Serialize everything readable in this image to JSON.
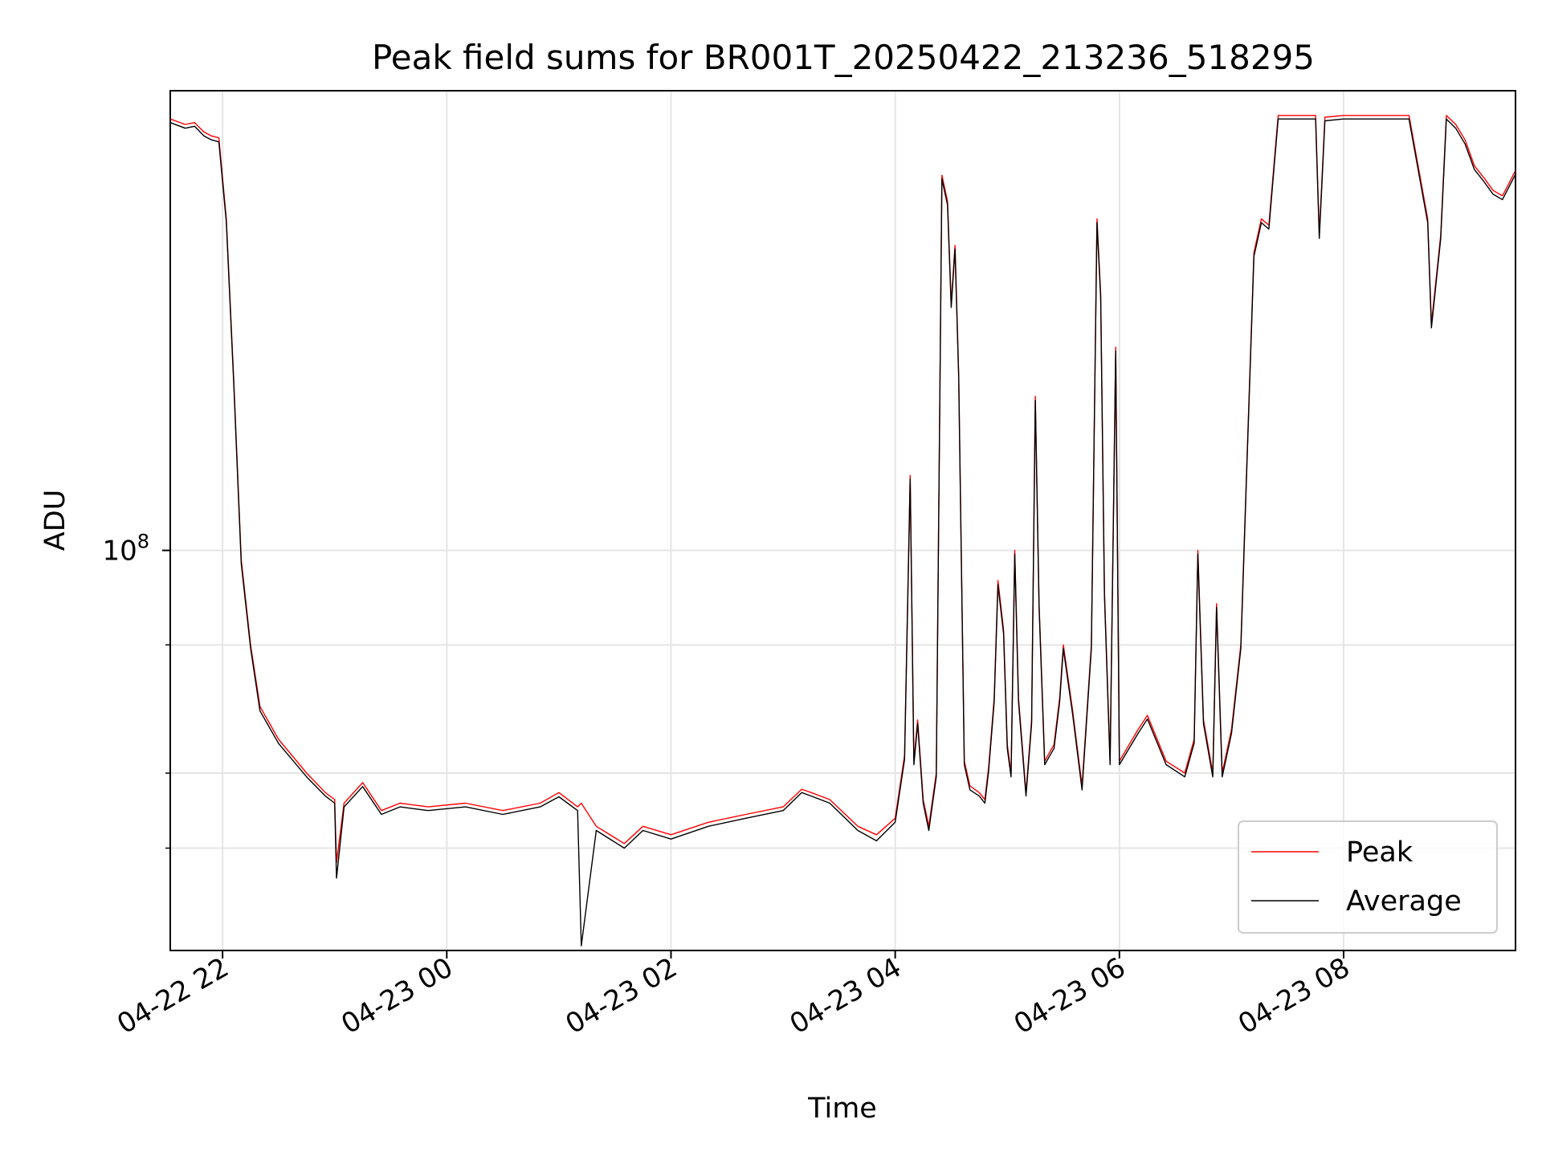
{
  "chart_data": {
    "type": "line",
    "title": "Peak field sums for BR001T_20250422_213236_518295",
    "xlabel": "Time",
    "ylabel": "ADU",
    "y_scale": "log",
    "grid": true,
    "legend_position": "bottom-right",
    "xlim": [
      "2025-04-22 21:32",
      "2025-04-23 09:32"
    ],
    "ylim": [
      11500000,
      1200000000
    ],
    "x_ticks": [
      {
        "value": "2025-04-22 22:00",
        "label": "04-22 22"
      },
      {
        "value": "2025-04-23 00:00",
        "label": "04-23 00"
      },
      {
        "value": "2025-04-23 02:00",
        "label": "04-23 02"
      },
      {
        "value": "2025-04-23 04:00",
        "label": "04-23 04"
      },
      {
        "value": "2025-04-23 06:00",
        "label": "04-23 06"
      },
      {
        "value": "2025-04-23 08:00",
        "label": "04-23 08"
      }
    ],
    "y_ticks": [
      {
        "value": 100000000,
        "base": "10",
        "exp": "8"
      }
    ],
    "y_minor_ticks": [
      20000000,
      30000000,
      60000000
    ],
    "series": [
      {
        "name": "Peak",
        "color": "#ff0000",
        "x": [
          "2025-04-22 21:32",
          "2025-04-22 21:40",
          "2025-04-22 21:45",
          "2025-04-22 21:50",
          "2025-04-22 21:54",
          "2025-04-22 21:58",
          "2025-04-22 22:02",
          "2025-04-22 22:06",
          "2025-04-22 22:10",
          "2025-04-22 22:15",
          "2025-04-22 22:20",
          "2025-04-22 22:30",
          "2025-04-22 22:45",
          "2025-04-22 22:55",
          "2025-04-22 23:00",
          "2025-04-22 23:01",
          "2025-04-22 23:05",
          "2025-04-22 23:15",
          "2025-04-22 23:25",
          "2025-04-22 23:35",
          "2025-04-22 23:50",
          "2025-04-23 00:10",
          "2025-04-23 00:30",
          "2025-04-23 00:50",
          "2025-04-23 01:00",
          "2025-04-23 01:10",
          "2025-04-23 01:12",
          "2025-04-23 01:20",
          "2025-04-23 01:35",
          "2025-04-23 01:45",
          "2025-04-23 02:00",
          "2025-04-23 02:20",
          "2025-04-23 02:40",
          "2025-04-23 03:00",
          "2025-04-23 03:10",
          "2025-04-23 03:15",
          "2025-04-23 03:25",
          "2025-04-23 03:40",
          "2025-04-23 03:50",
          "2025-04-23 04:00",
          "2025-04-23 04:05",
          "2025-04-23 04:08",
          "2025-04-23 04:10",
          "2025-04-23 04:12",
          "2025-04-23 04:15",
          "2025-04-23 04:18",
          "2025-04-23 04:22",
          "2025-04-23 04:25",
          "2025-04-23 04:28",
          "2025-04-23 04:30",
          "2025-04-23 04:32",
          "2025-04-23 04:34",
          "2025-04-23 04:37",
          "2025-04-23 04:40",
          "2025-04-23 04:45",
          "2025-04-23 04:48",
          "2025-04-23 04:50",
          "2025-04-23 04:53",
          "2025-04-23 04:55",
          "2025-04-23 04:58",
          "2025-04-23 05:00",
          "2025-04-23 05:02",
          "2025-04-23 05:04",
          "2025-04-23 05:06",
          "2025-04-23 05:10",
          "2025-04-23 05:13",
          "2025-04-23 05:15",
          "2025-04-23 05:17",
          "2025-04-23 05:20",
          "2025-04-23 05:25",
          "2025-04-23 05:28",
          "2025-04-23 05:30",
          "2025-04-23 05:35",
          "2025-04-23 05:40",
          "2025-04-23 05:45",
          "2025-04-23 05:48",
          "2025-04-23 05:50",
          "2025-04-23 05:52",
          "2025-04-23 05:55",
          "2025-04-23 05:58",
          "2025-04-23 06:00",
          "2025-04-23 06:10",
          "2025-04-23 06:15",
          "2025-04-23 06:25",
          "2025-04-23 06:35",
          "2025-04-23 06:40",
          "2025-04-23 06:42",
          "2025-04-23 06:45",
          "2025-04-23 06:50",
          "2025-04-23 06:52",
          "2025-04-23 06:55",
          "2025-04-23 07:00",
          "2025-04-23 07:05",
          "2025-04-23 07:08",
          "2025-04-23 07:12",
          "2025-04-23 07:16",
          "2025-04-23 07:20",
          "2025-04-23 07:25",
          "2025-04-23 07:30",
          "2025-04-23 07:45",
          "2025-04-23 07:47",
          "2025-04-23 07:50",
          "2025-04-23 08:00",
          "2025-04-23 08:20",
          "2025-04-23 08:35",
          "2025-04-23 08:45",
          "2025-04-23 08:47",
          "2025-04-23 08:52",
          "2025-04-23 08:55",
          "2025-04-23 09:00",
          "2025-04-23 09:05",
          "2025-04-23 09:10",
          "2025-04-23 09:15",
          "2025-04-23 09:20",
          "2025-04-23 09:25",
          "2025-04-23 09:28",
          "2025-04-23 09:32"
        ],
        "y": [
          1030000000,
          1000000000,
          1010000000,
          960000000,
          940000000,
          930000000,
          600000000,
          250000000,
          95000000,
          60000000,
          43000000,
          36000000,
          30000000,
          27000000,
          26000000,
          18500000,
          25500000,
          28500000,
          24500000,
          25500000,
          25000000,
          25500000,
          24500000,
          25500000,
          27000000,
          25000000,
          25500000,
          22500000,
          20500000,
          22500000,
          21500000,
          23000000,
          24000000,
          25000000,
          27500000,
          27000000,
          26000000,
          22500000,
          21500000,
          23500000,
          33000000,
          150000000,
          32000000,
          40000000,
          26000000,
          22500000,
          30000000,
          760000000,
          660000000,
          380000000,
          520000000,
          260000000,
          32000000,
          28000000,
          27000000,
          26000000,
          31000000,
          45000000,
          85000000,
          65000000,
          35000000,
          30000000,
          100000000,
          45000000,
          27000000,
          40000000,
          230000000,
          75000000,
          32000000,
          35000000,
          45000000,
          60000000,
          42000000,
          28000000,
          60000000,
          600000000,
          400000000,
          80000000,
          32000000,
          300000000,
          32000000,
          38000000,
          41000000,
          32000000,
          30000000,
          36000000,
          100000000,
          40000000,
          30000000,
          75000000,
          30000000,
          38000000,
          60000000,
          150000000,
          500000000,
          600000000,
          580000000,
          1050000000,
          1050000000,
          1050000000,
          550000000,
          1040000000,
          1050000000,
          1050000000,
          1050000000,
          600000000,
          340000000,
          550000000,
          1050000000,
          1000000000,
          920000000,
          800000000,
          750000000,
          700000000,
          680000000,
          720000000,
          780000000
        ]
      },
      {
        "name": "Average",
        "color": "#000000",
        "x": [
          "2025-04-22 21:32",
          "2025-04-22 21:40",
          "2025-04-22 21:45",
          "2025-04-22 21:50",
          "2025-04-22 21:54",
          "2025-04-22 21:58",
          "2025-04-22 22:02",
          "2025-04-22 22:06",
          "2025-04-22 22:10",
          "2025-04-22 22:15",
          "2025-04-22 22:20",
          "2025-04-22 22:30",
          "2025-04-22 22:45",
          "2025-04-22 22:55",
          "2025-04-22 23:00",
          "2025-04-22 23:01",
          "2025-04-22 23:05",
          "2025-04-22 23:15",
          "2025-04-22 23:25",
          "2025-04-22 23:35",
          "2025-04-22 23:50",
          "2025-04-23 00:10",
          "2025-04-23 00:30",
          "2025-04-23 00:50",
          "2025-04-23 01:00",
          "2025-04-23 01:10",
          "2025-04-23 01:12",
          "2025-04-23 01:20",
          "2025-04-23 01:35",
          "2025-04-23 01:45",
          "2025-04-23 02:00",
          "2025-04-23 02:20",
          "2025-04-23 02:40",
          "2025-04-23 03:00",
          "2025-04-23 03:10",
          "2025-04-23 03:15",
          "2025-04-23 03:25",
          "2025-04-23 03:40",
          "2025-04-23 03:50",
          "2025-04-23 04:00",
          "2025-04-23 04:05",
          "2025-04-23 04:08",
          "2025-04-23 04:10",
          "2025-04-23 04:12",
          "2025-04-23 04:15",
          "2025-04-23 04:18",
          "2025-04-23 04:22",
          "2025-04-23 04:25",
          "2025-04-23 04:28",
          "2025-04-23 04:30",
          "2025-04-23 04:32",
          "2025-04-23 04:34",
          "2025-04-23 04:37",
          "2025-04-23 04:40",
          "2025-04-23 04:45",
          "2025-04-23 04:48",
          "2025-04-23 04:50",
          "2025-04-23 04:53",
          "2025-04-23 04:55",
          "2025-04-23 04:58",
          "2025-04-23 05:00",
          "2025-04-23 05:02",
          "2025-04-23 05:04",
          "2025-04-23 05:06",
          "2025-04-23 05:10",
          "2025-04-23 05:13",
          "2025-04-23 05:15",
          "2025-04-23 05:17",
          "2025-04-23 05:20",
          "2025-04-23 05:25",
          "2025-04-23 05:28",
          "2025-04-23 05:30",
          "2025-04-23 05:35",
          "2025-04-23 05:40",
          "2025-04-23 05:45",
          "2025-04-23 05:48",
          "2025-04-23 05:50",
          "2025-04-23 05:52",
          "2025-04-23 05:55",
          "2025-04-23 05:58",
          "2025-04-23 06:00",
          "2025-04-23 06:10",
          "2025-04-23 06:15",
          "2025-04-23 06:25",
          "2025-04-23 06:35",
          "2025-04-23 06:40",
          "2025-04-23 06:42",
          "2025-04-23 06:45",
          "2025-04-23 06:50",
          "2025-04-23 06:52",
          "2025-04-23 06:55",
          "2025-04-23 07:00",
          "2025-04-23 07:05",
          "2025-04-23 07:08",
          "2025-04-23 07:12",
          "2025-04-23 07:16",
          "2025-04-23 07:20",
          "2025-04-23 07:25",
          "2025-04-23 07:30",
          "2025-04-23 07:45",
          "2025-04-23 07:47",
          "2025-04-23 07:50",
          "2025-04-23 08:00",
          "2025-04-23 08:20",
          "2025-04-23 08:35",
          "2025-04-23 08:45",
          "2025-04-23 08:47",
          "2025-04-23 08:52",
          "2025-04-23 08:55",
          "2025-04-23 09:00",
          "2025-04-23 09:05",
          "2025-04-23 09:10",
          "2025-04-23 09:15",
          "2025-04-23 09:20",
          "2025-04-23 09:25",
          "2025-04-23 09:28",
          "2025-04-23 09:32"
        ],
        "y": [
          1010000000,
          980000000,
          990000000,
          940000000,
          920000000,
          910000000,
          590000000,
          245000000,
          93000000,
          59000000,
          42000000,
          35200000,
          29400000,
          26500000,
          25500000,
          17000000,
          25000000,
          27900000,
          24000000,
          25000000,
          24500000,
          25000000,
          24000000,
          25000000,
          26400000,
          24500000,
          11800000,
          22000000,
          20000000,
          22000000,
          21000000,
          22500000,
          23500000,
          24500000,
          27000000,
          26500000,
          25500000,
          22000000,
          20800000,
          23000000,
          32300000,
          147000000,
          31400000,
          39200000,
          25500000,
          22000000,
          29400000,
          745000000,
          647000000,
          372000000,
          510000000,
          255000000,
          31400000,
          27400000,
          26500000,
          25500000,
          30400000,
          44100000,
          83000000,
          63700000,
          34300000,
          29400000,
          98000000,
          44100000,
          26500000,
          39200000,
          225000000,
          73500000,
          31400000,
          34300000,
          44100000,
          58800000,
          41200000,
          27400000,
          58800000,
          588000000,
          392000000,
          78400000,
          31400000,
          294000000,
          31400000,
          37200000,
          40200000,
          31400000,
          29400000,
          35300000,
          98000000,
          39200000,
          29400000,
          73500000,
          29400000,
          37200000,
          58800000,
          147000000,
          490000000,
          588000000,
          568000000,
          1030000000,
          1030000000,
          1030000000,
          540000000,
          1020000000,
          1030000000,
          1030000000,
          1030000000,
          588000000,
          333000000,
          540000000,
          1030000000,
          980000000,
          900000000,
          784000000,
          735000000,
          686000000,
          666000000,
          706000000,
          764000000
        ]
      }
    ]
  }
}
